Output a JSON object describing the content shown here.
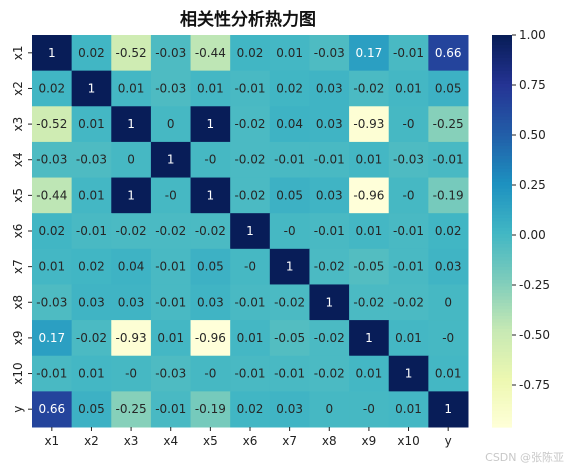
{
  "chart_data": {
    "type": "heatmap",
    "title": "相关性分析热力图",
    "x_labels": [
      "x1",
      "x2",
      "x3",
      "x4",
      "x5",
      "x6",
      "x7",
      "x8",
      "x9",
      "x10",
      "y"
    ],
    "y_labels": [
      "x1",
      "x2",
      "x3",
      "x4",
      "x5",
      "x6",
      "x7",
      "x8",
      "x9",
      "x10",
      "y"
    ],
    "values": [
      [
        1,
        0.02,
        -0.52,
        -0.03,
        -0.44,
        0.02,
        0.01,
        -0.03,
        0.17,
        -0.01,
        0.66
      ],
      [
        0.02,
        1,
        0.01,
        -0.03,
        0.01,
        -0.01,
        0.02,
        0.03,
        -0.02,
        0.01,
        0.05
      ],
      [
        -0.52,
        0.01,
        1,
        0,
        1,
        -0.02,
        0.04,
        0.03,
        -0.93,
        0,
        -0.25
      ],
      [
        -0.03,
        -0.03,
        0,
        1,
        0,
        -0.02,
        -0.01,
        -0.01,
        0.01,
        -0.03,
        -0.01
      ],
      [
        -0.44,
        0.01,
        1,
        0,
        1,
        -0.02,
        0.05,
        0.03,
        -0.96,
        0,
        -0.19
      ],
      [
        0.02,
        -0.01,
        -0.02,
        -0.02,
        -0.02,
        1,
        0,
        -0.01,
        0.01,
        -0.01,
        0.02
      ],
      [
        0.01,
        0.02,
        0.04,
        -0.01,
        0.05,
        0,
        1,
        -0.02,
        -0.05,
        -0.01,
        0.03
      ],
      [
        -0.03,
        0.03,
        0.03,
        -0.01,
        0.03,
        -0.01,
        -0.02,
        1,
        -0.02,
        -0.02,
        0
      ],
      [
        0.17,
        -0.02,
        -0.93,
        0.01,
        -0.96,
        0.01,
        -0.05,
        -0.02,
        1,
        0.01,
        0
      ],
      [
        -0.01,
        0.01,
        0,
        -0.03,
        0,
        -0.01,
        -0.01,
        -0.02,
        0.01,
        1,
        0.01
      ],
      [
        0.66,
        0.05,
        -0.25,
        -0.01,
        -0.19,
        0.02,
        0.03,
        0,
        0,
        0.01,
        1
      ]
    ],
    "colorbar": {
      "min": -0.96,
      "max": 1.0,
      "ticks": [
        "1.00",
        "0.75",
        "0.50",
        "0.25",
        "0.00",
        "-0.25",
        "-0.50",
        "-0.75"
      ],
      "tick_values": [
        1.0,
        0.75,
        0.5,
        0.25,
        0.0,
        -0.25,
        -0.5,
        -0.75
      ],
      "colormap": "YlGnBu"
    }
  },
  "watermark": "CSDN @张陈亚"
}
